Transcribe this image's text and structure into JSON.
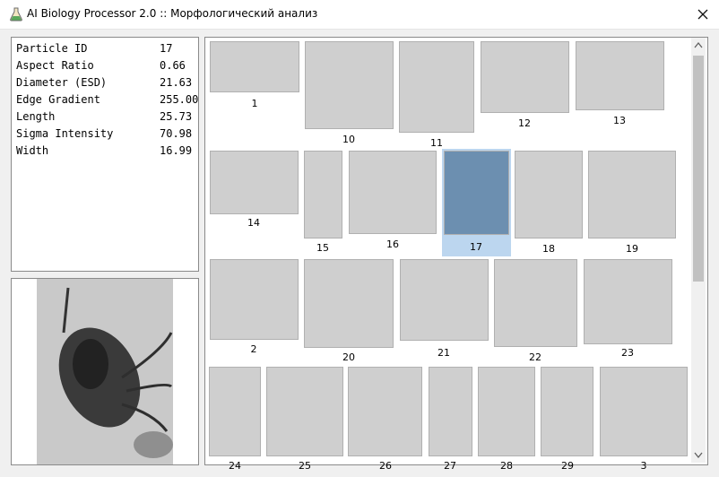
{
  "window": {
    "title": "AI Biology Processor 2.0 :: Морфологический анализ",
    "close_icon": "close-icon",
    "app_icon": "flask-icon"
  },
  "properties": [
    {
      "name": "Particle ID",
      "value": "17"
    },
    {
      "name": "Aspect Ratio",
      "value": "0.66"
    },
    {
      "name": "Diameter (ESD)",
      "value": "21.63"
    },
    {
      "name": "Edge Gradient",
      "value": "255.00"
    },
    {
      "name": "Length",
      "value": "25.73"
    },
    {
      "name": "Sigma Intensity",
      "value": "70.98"
    },
    {
      "name": "Width",
      "value": "16.99"
    }
  ],
  "gallery": {
    "selected_id": "17",
    "items": [
      {
        "label": "1"
      },
      {
        "label": "10"
      },
      {
        "label": "11"
      },
      {
        "label": "12"
      },
      {
        "label": "13"
      },
      {
        "label": "14"
      },
      {
        "label": "15"
      },
      {
        "label": "16"
      },
      {
        "label": "17"
      },
      {
        "label": "18"
      },
      {
        "label": "19"
      },
      {
        "label": "2"
      },
      {
        "label": "20"
      },
      {
        "label": "21"
      },
      {
        "label": "22"
      },
      {
        "label": "23"
      },
      {
        "label": "24"
      },
      {
        "label": "25"
      },
      {
        "label": "26"
      },
      {
        "label": "27"
      },
      {
        "label": "28"
      },
      {
        "label": "29"
      },
      {
        "label": "3"
      }
    ]
  },
  "colors": {
    "selection": "#bcd6ef",
    "border": "#8a8a8a"
  }
}
